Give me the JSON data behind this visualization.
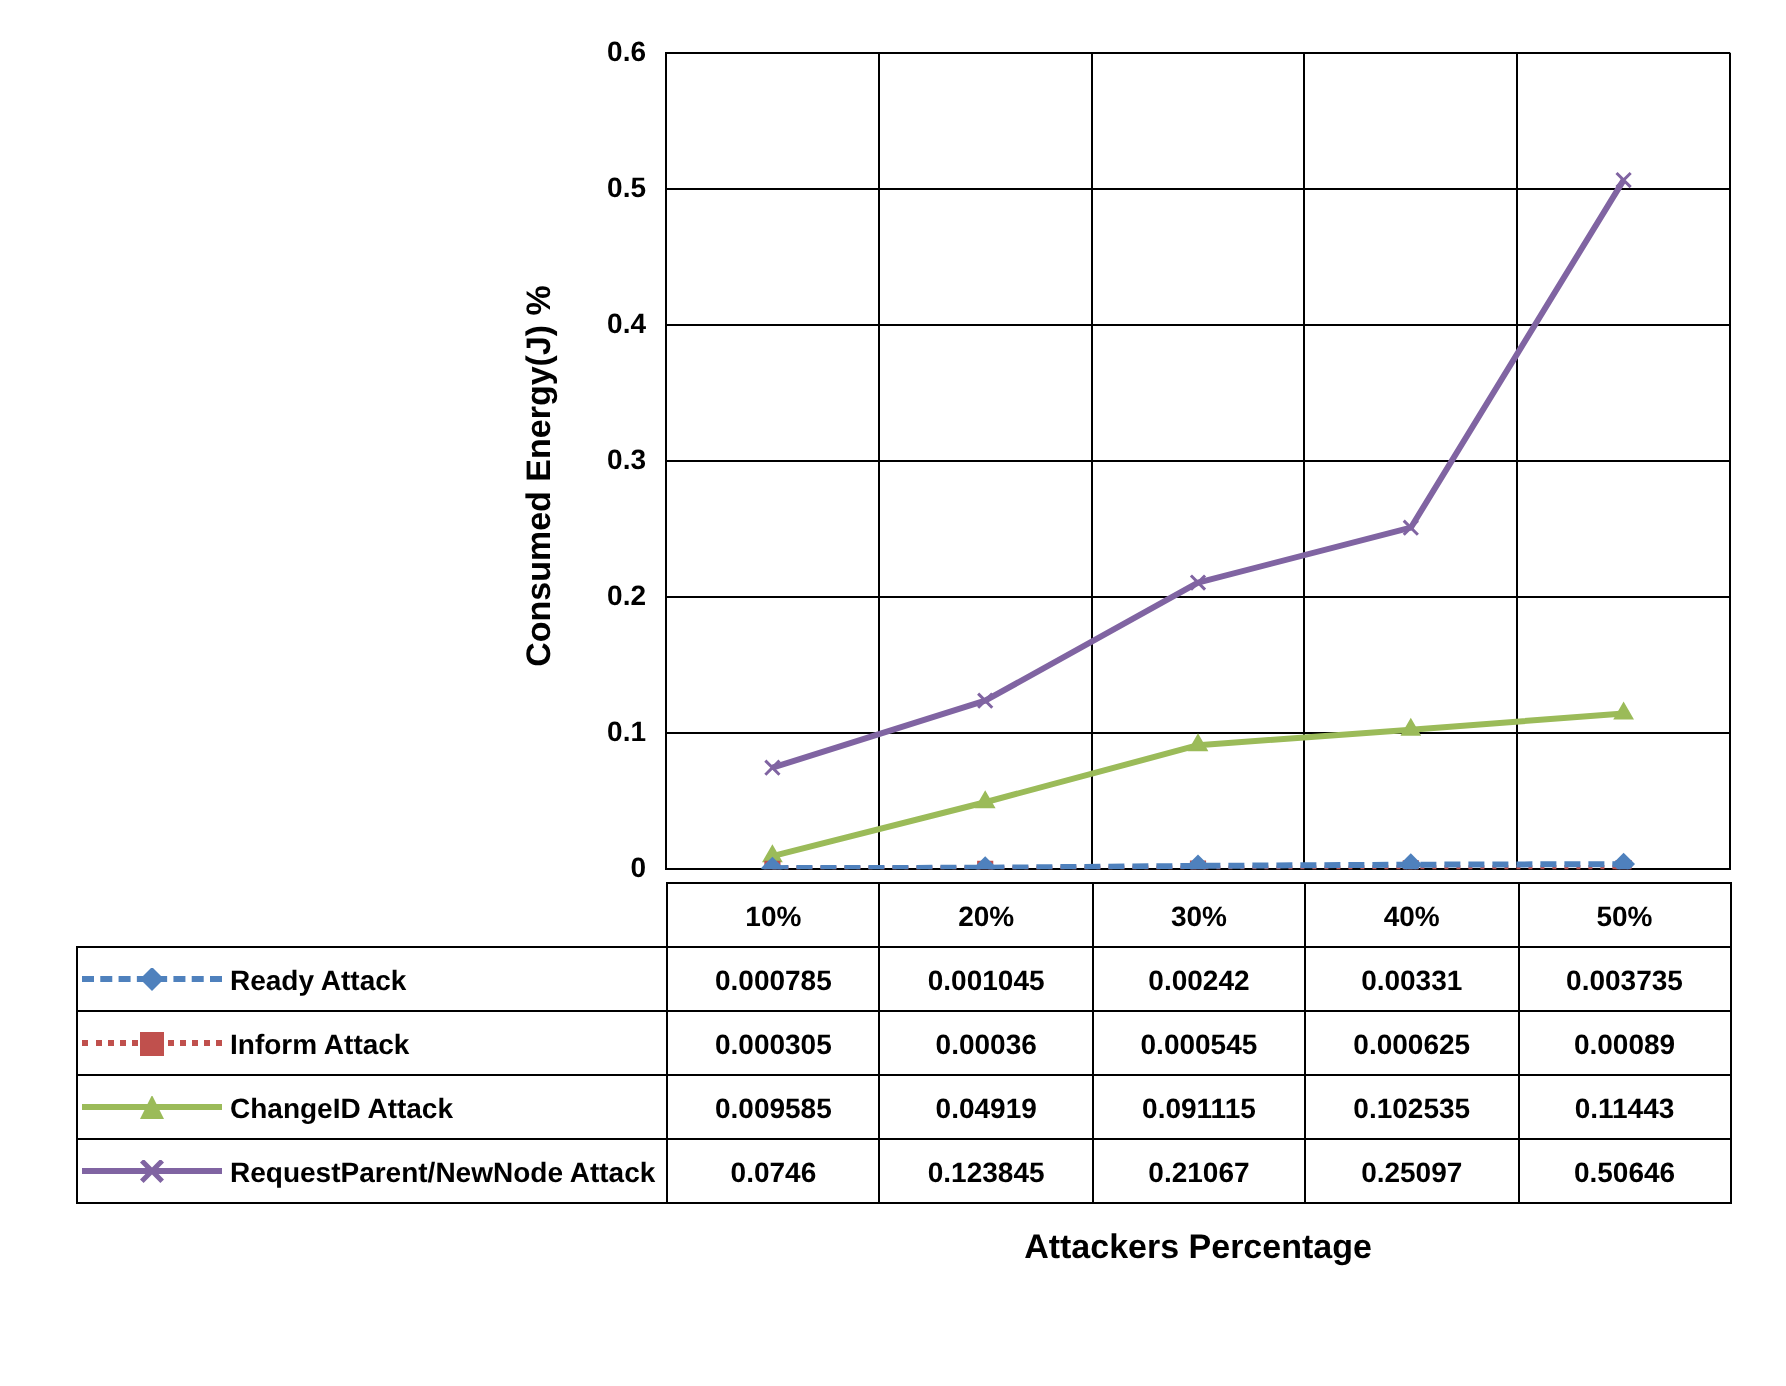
{
  "chart_data": {
    "type": "line",
    "annotations": [
      "Attackers Percentage"
    ],
    "ylabel": "Consumed Energy(J) %",
    "categories": [
      "10%",
      "20%",
      "30%",
      "40%",
      "50%"
    ],
    "series": [
      {
        "name": "Ready Attack",
        "color": "#4f81bd",
        "marker": "diamond",
        "line_style": "dashed",
        "values": [
          0.000785,
          0.001045,
          0.00242,
          0.00331,
          0.003735
        ]
      },
      {
        "name": "Inform Attack",
        "color": "#c0504d",
        "marker": "square",
        "line_style": "dotted",
        "values": [
          0.000305,
          0.00036,
          0.000545,
          0.000625,
          0.00089
        ]
      },
      {
        "name": "ChangeID Attack",
        "color": "#9bbb59",
        "marker": "triangle",
        "line_style": "solid",
        "values": [
          0.009585,
          0.04919,
          0.091115,
          0.102535,
          0.11443
        ]
      },
      {
        "name": "RequestParent/NewNode Attack",
        "color": "#8064a2",
        "marker": "cross",
        "line_style": "solid",
        "values": [
          0.0746,
          0.123845,
          0.21067,
          0.25097,
          0.50646
        ]
      }
    ],
    "ylim": [
      0,
      0.6
    ],
    "yticks": [
      0,
      0.1,
      0.2,
      0.3,
      0.4,
      0.5,
      0.6
    ],
    "grid": true,
    "legend": "bottom",
    "data_labels": true
  }
}
